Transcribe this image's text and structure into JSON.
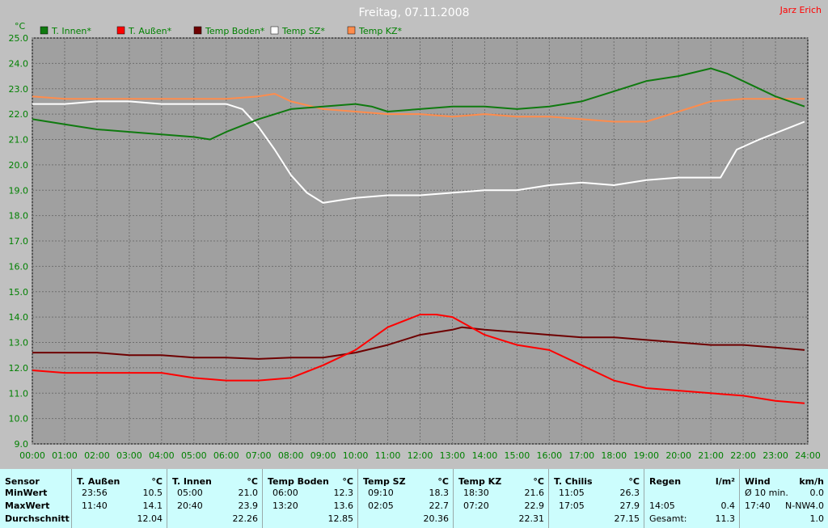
{
  "title": "Freitag, 07.11.2008",
  "author": "Jarz Erich",
  "y_unit": "°C",
  "colors": {
    "innen": "#0f7a0f",
    "aussen": "#ff0000",
    "boden": "#6e0000",
    "sz": "#ffffff",
    "kz": "#ff8c4c"
  },
  "chart_data": {
    "type": "line",
    "title": "Freitag, 07.11.2008",
    "ylabel": "°C",
    "ylim": [
      9.0,
      25.0
    ],
    "y_ticks": [
      "9.0",
      "10.0",
      "11.0",
      "12.0",
      "13.0",
      "14.0",
      "15.0",
      "16.0",
      "17.0",
      "18.0",
      "19.0",
      "20.0",
      "21.0",
      "22.0",
      "23.0",
      "24.0",
      "25.0"
    ],
    "x_ticks": [
      "00:00",
      "01:00",
      "02:00",
      "03:00",
      "04:00",
      "05:00",
      "06:00",
      "07:00",
      "08:00",
      "09:00",
      "10:00",
      "11:00",
      "12:00",
      "13:00",
      "14:00",
      "15:00",
      "16:00",
      "17:00",
      "18:00",
      "19:00",
      "20:00",
      "21:00",
      "22:00",
      "23:00",
      "24:00"
    ],
    "grid": true,
    "legend_position": "top",
    "series": [
      {
        "name": "T. Innen*",
        "color": "#0f7a0f",
        "x": [
          0,
          1,
          2,
          3,
          4,
          5,
          5.5,
          6,
          7,
          8,
          9,
          10,
          10.5,
          11,
          12,
          13,
          14,
          15,
          16,
          17,
          18,
          19,
          20,
          21,
          21.5,
          22,
          23,
          23.9
        ],
        "values": [
          21.8,
          21.6,
          21.4,
          21.3,
          21.2,
          21.1,
          21.0,
          21.3,
          21.8,
          22.2,
          22.3,
          22.4,
          22.3,
          22.1,
          22.2,
          22.3,
          22.3,
          22.2,
          22.3,
          22.5,
          22.9,
          23.3,
          23.5,
          23.8,
          23.6,
          23.3,
          22.7,
          22.3
        ]
      },
      {
        "name": "T. Außen*",
        "color": "#ff0000",
        "x": [
          0,
          1,
          2,
          3,
          4,
          5,
          6,
          7,
          8,
          9,
          10,
          11,
          12,
          12.5,
          13,
          14,
          15,
          16,
          17,
          18,
          19,
          20,
          21,
          22,
          23,
          23.9
        ],
        "values": [
          11.9,
          11.8,
          11.8,
          11.8,
          11.8,
          11.6,
          11.5,
          11.5,
          11.6,
          12.1,
          12.7,
          13.6,
          14.1,
          14.1,
          14.0,
          13.3,
          12.9,
          12.7,
          12.1,
          11.5,
          11.2,
          11.1,
          11.0,
          10.9,
          10.7,
          10.6
        ]
      },
      {
        "name": "Temp Boden*",
        "color": "#6e0000",
        "x": [
          0,
          1,
          2,
          3,
          4,
          5,
          6,
          7,
          8,
          9,
          10,
          11,
          12,
          13,
          13.3,
          14,
          15,
          16,
          17,
          18,
          19,
          20,
          21,
          22,
          23,
          23.9
        ],
        "values": [
          12.6,
          12.6,
          12.6,
          12.5,
          12.5,
          12.4,
          12.4,
          12.35,
          12.4,
          12.4,
          12.6,
          12.9,
          13.3,
          13.5,
          13.6,
          13.5,
          13.4,
          13.3,
          13.2,
          13.2,
          13.1,
          13.0,
          12.9,
          12.9,
          12.8,
          12.7
        ]
      },
      {
        "name": "Temp SZ*",
        "color": "#ffffff",
        "x": [
          0,
          1,
          2,
          3,
          4,
          5,
          6,
          6.5,
          7,
          7.5,
          8,
          8.5,
          9,
          9.5,
          10,
          11,
          12,
          13,
          14,
          15,
          16,
          17,
          18,
          19,
          20,
          21,
          21.3,
          21.8,
          22.5,
          23.5,
          23.9
        ],
        "values": [
          22.4,
          22.4,
          22.5,
          22.5,
          22.4,
          22.4,
          22.4,
          22.2,
          21.5,
          20.6,
          19.6,
          18.9,
          18.5,
          18.6,
          18.7,
          18.8,
          18.8,
          18.9,
          19.0,
          19.0,
          19.2,
          19.3,
          19.2,
          19.4,
          19.5,
          19.5,
          19.5,
          20.6,
          21.0,
          21.5,
          21.7
        ]
      },
      {
        "name": "Temp KZ*",
        "color": "#ff8c4c",
        "x": [
          0,
          1,
          2,
          3,
          4,
          5,
          6,
          7,
          7.5,
          8,
          9,
          10,
          11,
          12,
          13,
          14,
          15,
          16,
          17,
          18,
          19,
          20,
          21,
          22,
          23,
          23.9
        ],
        "values": [
          22.7,
          22.6,
          22.6,
          22.6,
          22.6,
          22.6,
          22.6,
          22.7,
          22.8,
          22.5,
          22.2,
          22.1,
          22.0,
          22.0,
          21.9,
          22.0,
          21.9,
          21.9,
          21.8,
          21.7,
          21.7,
          22.1,
          22.5,
          22.6,
          22.6,
          22.6
        ]
      }
    ]
  },
  "stats": {
    "sensor": {
      "title": "Sensor",
      "min": "MinWert",
      "max": "MaxWert",
      "avg": "Durchschnitt"
    },
    "columns": [
      {
        "title": "T. Außen",
        "unit": "°C",
        "min_time": "23:56",
        "min_val": "10.5",
        "max_time": "11:40",
        "max_val": "14.1",
        "avg": "12.04"
      },
      {
        "title": "T. Innen",
        "unit": "°C",
        "min_time": "05:00",
        "min_val": "21.0",
        "max_time": "20:40",
        "max_val": "23.9",
        "avg": "22.26"
      },
      {
        "title": "Temp Boden",
        "unit": "°C",
        "min_time": "06:00",
        "min_val": "12.3",
        "max_time": "13:20",
        "max_val": "13.6",
        "avg": "12.85"
      },
      {
        "title": "Temp SZ",
        "unit": "°C",
        "min_time": "09:10",
        "min_val": "18.3",
        "max_time": "02:05",
        "max_val": "22.7",
        "avg": "20.36"
      },
      {
        "title": "Temp KZ",
        "unit": "°C",
        "min_time": "18:30",
        "min_val": "21.6",
        "max_time": "07:20",
        "max_val": "22.9",
        "avg": "22.31"
      },
      {
        "title": "T. Chilis",
        "unit": "°C",
        "min_time": "11:05",
        "min_val": "26.3",
        "max_time": "17:05",
        "max_val": "27.9",
        "avg": "27.15"
      }
    ],
    "regen": {
      "title": "Regen",
      "unit": "l/m²",
      "max_time": "14:05",
      "max_val": "0.4",
      "avg_label": "Gesamt:",
      "avg": "11.3"
    },
    "wind": {
      "title": "Wind",
      "unit": "km/h",
      "min_label": "Ø 10 min.",
      "min_val": "0.0",
      "max_time": "17:40",
      "max_dir": "N-NW",
      "max_val": "4.0",
      "avg": "1.0"
    }
  }
}
